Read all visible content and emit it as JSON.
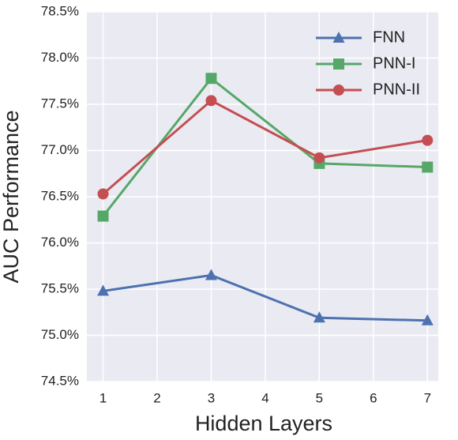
{
  "chart_data": {
    "type": "line",
    "x_label": "Hidden Layers",
    "y_label": "AUC Performance",
    "x": [
      1,
      3,
      5,
      7
    ],
    "series": [
      {
        "name": "FNN",
        "color": "#4c72b0",
        "marker": "triangle",
        "values": [
          75.48,
          75.65,
          75.19,
          75.16
        ]
      },
      {
        "name": "PNN-I",
        "color": "#55a868",
        "marker": "square",
        "values": [
          76.29,
          77.78,
          76.86,
          76.82
        ]
      },
      {
        "name": "PNN-II",
        "color": "#c44e52",
        "marker": "circle",
        "values": [
          76.53,
          77.54,
          76.92,
          77.11
        ]
      }
    ],
    "xlim": [
      0.7,
      7.2
    ],
    "xticks": [
      1,
      2,
      3,
      4,
      5,
      6,
      7
    ],
    "ylim": [
      74.5,
      78.5
    ],
    "yticks": [
      {
        "value": 74.5,
        "label": "74.5%"
      },
      {
        "value": 75.0,
        "label": "75.0%"
      },
      {
        "value": 75.5,
        "label": "75.5%"
      },
      {
        "value": 76.0,
        "label": "76.0%"
      },
      {
        "value": 76.5,
        "label": "76.5%"
      },
      {
        "value": 77.0,
        "label": "77.0%"
      },
      {
        "value": 77.5,
        "label": "77.5%"
      },
      {
        "value": 78.0,
        "label": "78.0%"
      },
      {
        "value": 78.5,
        "label": "78.5%"
      }
    ],
    "grid": true,
    "legend": "upper right",
    "background": "#eaeaf2"
  }
}
